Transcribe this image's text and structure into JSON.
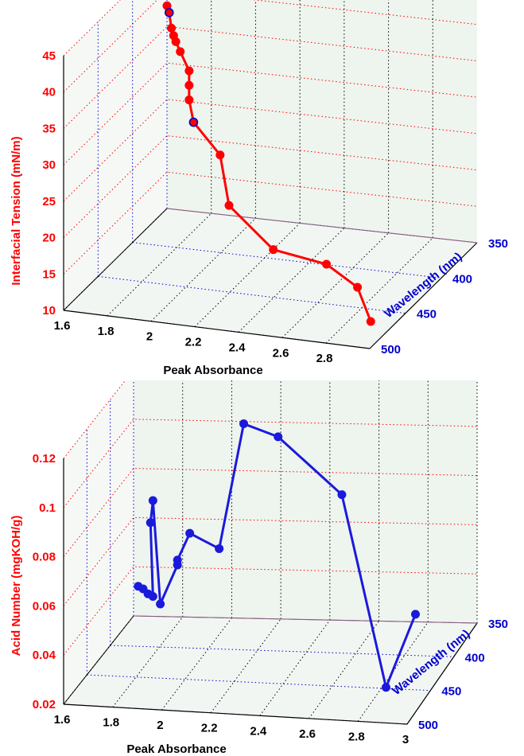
{
  "chart_data": [
    {
      "type": "line3d",
      "series_color": "#ff0000",
      "marker": "filled-circle",
      "highlight_points": [
        1,
        9
      ],
      "highlight_color": "#0000cc",
      "xlabel": "Peak Absorbance",
      "ylabel": "Wavelength (nm)",
      "zlabel": "Interfacial Tension (mN/m)",
      "xticks": [
        "1.6",
        "1.8",
        "2",
        "2.2",
        "2.4",
        "2.6",
        "2.8"
      ],
      "yticks": [
        "350",
        "400",
        "450",
        "500"
      ],
      "zticks": [
        "10",
        "15",
        "20",
        "25",
        "30",
        "35",
        "40",
        "45"
      ],
      "xlim": [
        1.6,
        3.0
      ],
      "ylim": [
        350,
        500
      ],
      "zlim": [
        10,
        45
      ],
      "axis_color_x": "#000000",
      "axis_color_y": "#0000cc",
      "axis_color_z": "#ff0000",
      "grid": true,
      "points": [
        {
          "x": 1.88,
          "y": 440,
          "z": 47.2
        },
        {
          "x": 1.89,
          "y": 440,
          "z": 46.3
        },
        {
          "x": 1.9,
          "y": 440,
          "z": 44.2
        },
        {
          "x": 1.91,
          "y": 440,
          "z": 43.2
        },
        {
          "x": 1.92,
          "y": 440,
          "z": 42.4
        },
        {
          "x": 1.94,
          "y": 440,
          "z": 41.1
        },
        {
          "x": 1.98,
          "y": 440,
          "z": 38.6
        },
        {
          "x": 1.98,
          "y": 440,
          "z": 36.6
        },
        {
          "x": 1.98,
          "y": 440,
          "z": 34.6
        },
        {
          "x": 2.0,
          "y": 440,
          "z": 31.6
        },
        {
          "x": 2.12,
          "y": 440,
          "z": 27.5
        },
        {
          "x": 2.16,
          "y": 440,
          "z": 20.7
        },
        {
          "x": 2.36,
          "y": 440,
          "z": 15.3
        },
        {
          "x": 2.6,
          "y": 440,
          "z": 14.1
        },
        {
          "x": 2.74,
          "y": 440,
          "z": 11.4
        },
        {
          "x": 2.8,
          "y": 440,
          "z": 6.9
        }
      ]
    },
    {
      "type": "line3d",
      "series_color": "#1a1adc",
      "marker": "filled-circle",
      "xlabel": "Peak Absorbance",
      "ylabel": "Wavelength (nm)",
      "zlabel": "Acid Number (mgKOH/g)",
      "xticks": [
        "1.6",
        "1.8",
        "2",
        "2.2",
        "2.4",
        "2.6",
        "2.8",
        "3"
      ],
      "yticks": [
        "350",
        "400",
        "450",
        "500"
      ],
      "zticks": [
        "0.02",
        "0.04",
        "0.06",
        "0.08",
        "0.1",
        "0.12"
      ],
      "xlim": [
        1.6,
        3.0
      ],
      "ylim": [
        350,
        500
      ],
      "zlim": [
        0.02,
        0.12
      ],
      "axis_color_x": "#000000",
      "axis_color_y": "#0000cc",
      "axis_color_z": "#ff0000",
      "grid": true,
      "points": [
        {
          "x": 1.79,
          "y": 440,
          "z": 0.054
        },
        {
          "x": 1.81,
          "y": 440,
          "z": 0.053
        },
        {
          "x": 1.83,
          "y": 440,
          "z": 0.051
        },
        {
          "x": 1.85,
          "y": 440,
          "z": 0.05
        },
        {
          "x": 1.84,
          "y": 440,
          "z": 0.08
        },
        {
          "x": 1.85,
          "y": 440,
          "z": 0.089
        },
        {
          "x": 1.88,
          "y": 440,
          "z": 0.047
        },
        {
          "x": 1.95,
          "y": 440,
          "z": 0.063
        },
        {
          "x": 1.95,
          "y": 440,
          "z": 0.065
        },
        {
          "x": 2.0,
          "y": 440,
          "z": 0.076
        },
        {
          "x": 2.12,
          "y": 440,
          "z": 0.07
        },
        {
          "x": 2.22,
          "y": 440,
          "z": 0.121
        },
        {
          "x": 2.36,
          "y": 440,
          "z": 0.116
        },
        {
          "x": 2.62,
          "y": 440,
          "z": 0.093
        },
        {
          "x": 2.8,
          "y": 440,
          "z": 0.015
        },
        {
          "x": 2.92,
          "y": 440,
          "z": 0.045
        }
      ]
    }
  ]
}
